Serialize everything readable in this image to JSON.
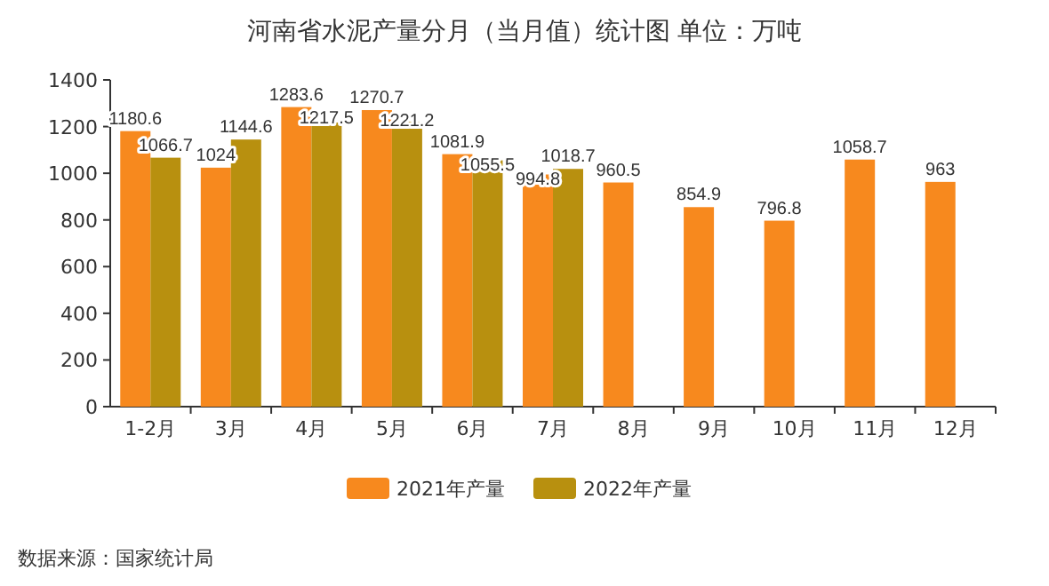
{
  "chart_data": {
    "type": "bar",
    "title": "河南省水泥产量分月（当月值）统计图 单位：万吨",
    "categories": [
      "1-2月",
      "3月",
      "4月",
      "5月",
      "6月",
      "7月",
      "8月",
      "9月",
      "10月",
      "11月",
      "12月"
    ],
    "series": [
      {
        "name": "2021年产量",
        "color": "#f7891e",
        "values": [
          1180.6,
          1024,
          1283.6,
          1270.7,
          1081.9,
          994.8,
          960.5,
          854.9,
          796.8,
          1058.7,
          963
        ]
      },
      {
        "name": "2022年产量",
        "color": "#b8900f",
        "values": [
          1066.7,
          1144.6,
          1217.5,
          1221.2,
          1055.5,
          1018.7,
          null,
          null,
          null,
          null,
          null
        ]
      }
    ],
    "ylim": [
      0,
      1400
    ],
    "yticks": [
      0,
      200,
      400,
      600,
      800,
      1000,
      1200,
      1400
    ],
    "data_labels": true,
    "legend": "bottom",
    "grid": false,
    "annotations": [
      "数据来源：国家统计局"
    ]
  }
}
